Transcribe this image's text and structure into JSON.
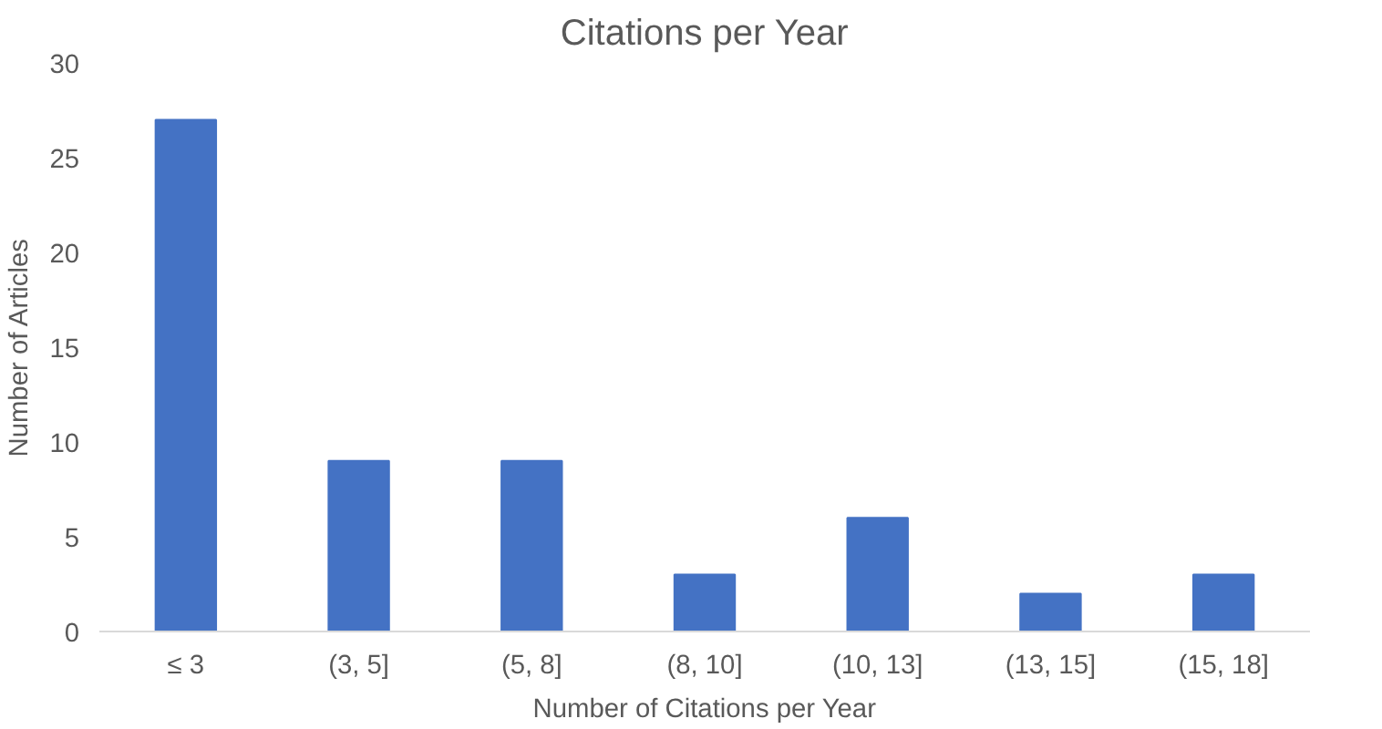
{
  "chart_data": {
    "type": "bar",
    "title": "Citations per Year",
    "xlabel": "Number of Citations per Year",
    "ylabel": "Number of Articles",
    "categories": [
      "≤ 3",
      "(3, 5]",
      "(5, 8]",
      "(8, 10]",
      "(10, 13]",
      "(13, 15]",
      "(15, 18]"
    ],
    "values": [
      27,
      9,
      9,
      3,
      6,
      2,
      3
    ],
    "color": "#4472c4",
    "ylim": [
      0,
      30
    ],
    "yticks": [
      0,
      5,
      10,
      15,
      20,
      25,
      30
    ],
    "grid": false
  }
}
